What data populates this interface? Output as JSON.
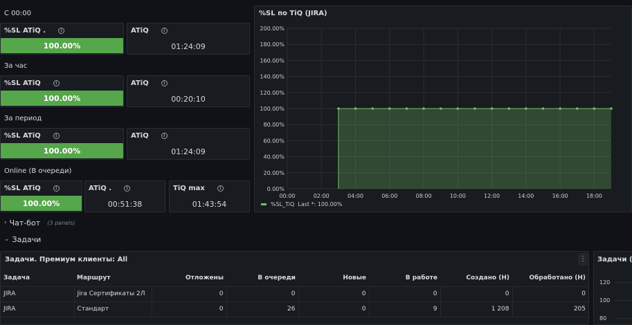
{
  "sections": {
    "since_midnight": "С 00:00",
    "per_hour": "За час",
    "per_period": "За период",
    "online": "Online (В очереди)"
  },
  "stats": {
    "since_midnight": {
      "sl_title": "%SL ATiQ .",
      "sl_value": "100.00%",
      "sl_fill": 1.0,
      "atiq_title": "ATiQ",
      "atiq_value": "01:24:09"
    },
    "per_hour": {
      "sl_title": "%SL ATiQ",
      "sl_value": "100.00%",
      "sl_fill": 1.0,
      "atiq_title": "ATiQ",
      "atiq_value": "00:20:10"
    },
    "per_period": {
      "sl_title": "%SL ATiQ",
      "sl_value": "100.00%",
      "sl_fill": 1.0,
      "atiq_title": "ATiQ",
      "atiq_value": "01:24:09"
    },
    "online": {
      "sl_title": "%SL ATiQ",
      "sl_value": "100.00%",
      "sl_fill": 1.0,
      "atiq_title": "ATiQ .",
      "atiq_value": "00:51:38",
      "tiqmax_title": "TiQ max",
      "tiqmax_value": "01:43:54"
    }
  },
  "chart_panel": {
    "title": "%SL по TiQ (JIRA)",
    "legend_name": "%SL_TiQ",
    "legend_last": "Last *: 100.00%"
  },
  "chart_data": {
    "type": "area",
    "title": "%SL по TiQ (JIRA)",
    "xlabel": "",
    "ylabel": "",
    "x_ticks": [
      "00:00",
      "02:00",
      "04:00",
      "06:00",
      "08:00",
      "10:00",
      "12:00",
      "14:00",
      "16:00",
      "18:00"
    ],
    "y_ticks": [
      "0.00%",
      "20.00%",
      "40.00%",
      "60.00%",
      "80.00%",
      "100.00%",
      "120.00%",
      "140.00%",
      "160.00%",
      "180.00%",
      "200.00%"
    ],
    "xlim": [
      0,
      19
    ],
    "ylim": [
      0,
      200
    ],
    "grid": true,
    "legend": "bottom-left",
    "series": [
      {
        "name": "%SL_TiQ",
        "color": "#73bf69",
        "x": [
          3,
          4,
          5,
          6,
          7,
          8,
          9,
          10,
          11,
          12,
          13,
          14,
          15,
          16,
          17,
          18,
          19
        ],
        "y": [
          100,
          100,
          100,
          100,
          100,
          100,
          100,
          100,
          100,
          100,
          100,
          100,
          100,
          100,
          100,
          100,
          100
        ]
      }
    ]
  },
  "rows": {
    "chatbot": {
      "label": "Чат-бот",
      "count": "(3 panels)"
    },
    "tasks": {
      "label": "Задачи"
    }
  },
  "table_panel": {
    "title": "Задачи. Премиум клиенты: All",
    "menu_icon": "kebab-icon",
    "columns": [
      "Задача",
      "Маршрут",
      "Отложены",
      "В очереди",
      "Новые",
      "В работе",
      "Создано (Н)",
      "Обработано (Н)"
    ],
    "rows": [
      [
        "JIRA",
        "Jira Сертификаты 2Л",
        "0",
        "0",
        "0",
        "0",
        "0",
        "0"
      ],
      [
        "JIRA",
        "Стандарт",
        "0",
        "26",
        "0",
        "9",
        "1 208",
        "205"
      ]
    ]
  },
  "right_panel": {
    "title": "Задачи (JIRA",
    "y_ticks": [
      "120",
      "100",
      "80"
    ]
  },
  "colors": {
    "background": "#111217",
    "panel": "#181b1f",
    "green": "#56a64b",
    "series": "#73bf69"
  }
}
